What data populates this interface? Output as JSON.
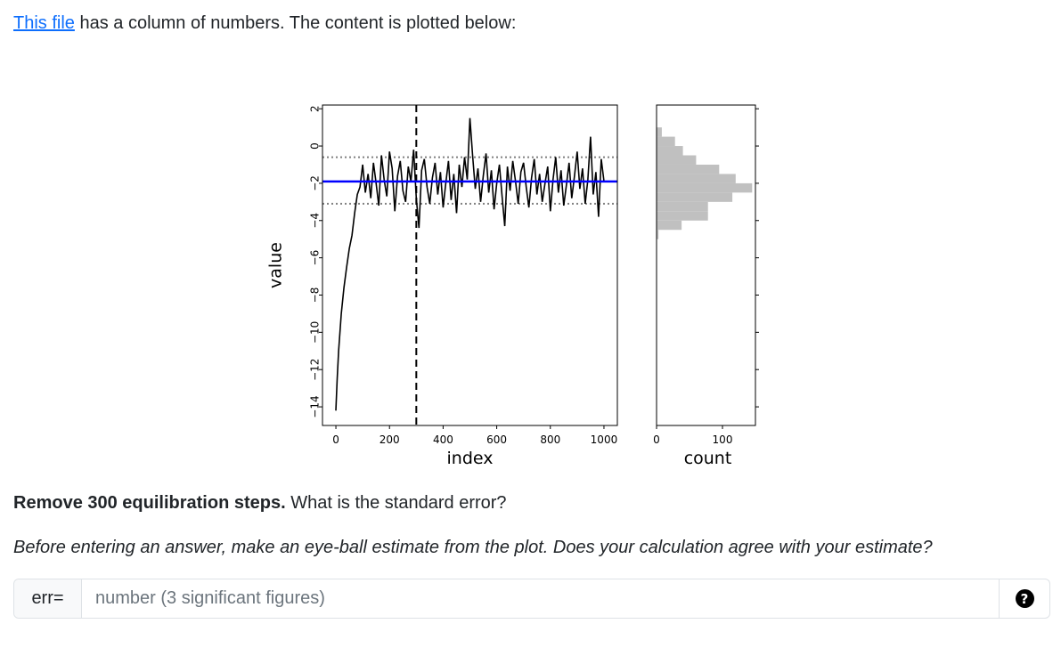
{
  "intro": {
    "link_text": "This file",
    "text": " has a column of numbers. The content is plotted below:"
  },
  "question": {
    "bold": "Remove 300 equilibration steps.",
    "text": " What is the standard error?"
  },
  "estimate_text": "Before entering an answer, make an eye-ball estimate from the plot. Does your calculation agree with your estimate?",
  "answer": {
    "label": "err=",
    "placeholder": "number (3 significant figures)",
    "help_icon": "question-circle-icon",
    "help_glyph": "?"
  },
  "colors": {
    "trace": "#000000",
    "mean_line": "#0000ff",
    "band_lines": "#808080",
    "histogram": "#c0c0c0",
    "link": "#0d6efd"
  },
  "chart_data": [
    {
      "type": "line",
      "xlabel": "index",
      "ylabel": "value",
      "xlim": [
        -50,
        1050
      ],
      "ylim": [
        -15,
        2.2
      ],
      "xticks": [
        0,
        200,
        400,
        600,
        800,
        1000
      ],
      "yticks": [
        2,
        0,
        -2,
        -4,
        -6,
        -8,
        -10,
        -12,
        -14
      ],
      "equilibration_cutoff": 300,
      "mean": -1.9,
      "band": [
        -0.6,
        -3.1
      ],
      "series": [
        {
          "x": [
            0,
            5,
            10,
            20,
            30,
            40,
            50,
            60,
            70,
            80,
            90,
            100,
            110,
            120,
            130,
            140,
            150,
            160,
            170,
            180,
            190,
            200,
            210,
            220,
            230,
            240,
            250,
            260,
            270,
            280,
            290,
            300,
            310,
            320,
            330,
            340,
            350,
            360,
            370,
            380,
            390,
            400,
            410,
            420,
            430,
            440,
            450,
            460,
            470,
            480,
            490,
            500,
            510,
            520,
            530,
            540,
            550,
            560,
            570,
            580,
            590,
            600,
            610,
            620,
            630,
            640,
            650,
            660,
            670,
            680,
            690,
            700,
            710,
            720,
            730,
            740,
            750,
            760,
            770,
            780,
            790,
            800,
            810,
            820,
            830,
            840,
            850,
            860,
            870,
            880,
            890,
            900,
            910,
            920,
            930,
            940,
            950,
            960,
            970,
            980,
            990,
            1000
          ],
          "y": [
            -14.2,
            -12.5,
            -11.0,
            -9.0,
            -7.6,
            -6.5,
            -5.5,
            -4.8,
            -3.6,
            -2.6,
            -2.2,
            -1.0,
            -2.5,
            -1.5,
            -2.8,
            -0.9,
            -2.0,
            -3.2,
            -0.5,
            -1.8,
            -2.7,
            -0.3,
            -1.2,
            -3.5,
            -1.6,
            -0.8,
            -2.4,
            -3.0,
            -1.1,
            -1.9,
            -0.2,
            -2.8,
            -4.4,
            -1.3,
            -0.7,
            -2.2,
            -3.1,
            -1.7,
            -0.9,
            -2.6,
            -1.4,
            -3.3,
            -2.0,
            -0.8,
            -2.9,
            -1.5,
            -3.6,
            -1.0,
            -2.2,
            -0.6,
            -1.8,
            1.5,
            -0.5,
            -2.3,
            -1.2,
            -3.0,
            -1.6,
            -0.4,
            -2.5,
            -1.3,
            -3.4,
            -2.0,
            -1.0,
            -2.7,
            -4.3,
            -1.1,
            -2.4,
            -0.8,
            -1.9,
            -3.1,
            -1.4,
            -0.9,
            -2.2,
            -3.3,
            -1.7,
            -0.7,
            -2.6,
            -1.5,
            -3.0,
            -2.0,
            -1.1,
            -3.5,
            -1.8,
            -0.6,
            -2.5,
            -1.3,
            -3.2,
            -2.1,
            -0.9,
            -2.8,
            -1.6,
            -0.3,
            -2.3,
            -1.2,
            -3.1,
            -1.8,
            0.5,
            -2.6,
            -1.4,
            -3.8,
            -0.7,
            -1.9
          ]
        }
      ]
    },
    {
      "type": "bar",
      "orientation": "horizontal",
      "xlabel": "count",
      "xlim": [
        0,
        150
      ],
      "xticks": [
        0,
        100
      ],
      "bin_edges": [
        -5.0,
        -4.5,
        -4.0,
        -3.5,
        -3.0,
        -2.5,
        -2.0,
        -1.5,
        -1.0,
        -0.5,
        0.0,
        0.5,
        1.0,
        1.5
      ],
      "values": [
        3,
        38,
        78,
        78,
        115,
        145,
        120,
        95,
        60,
        40,
        28,
        8,
        0
      ]
    }
  ]
}
